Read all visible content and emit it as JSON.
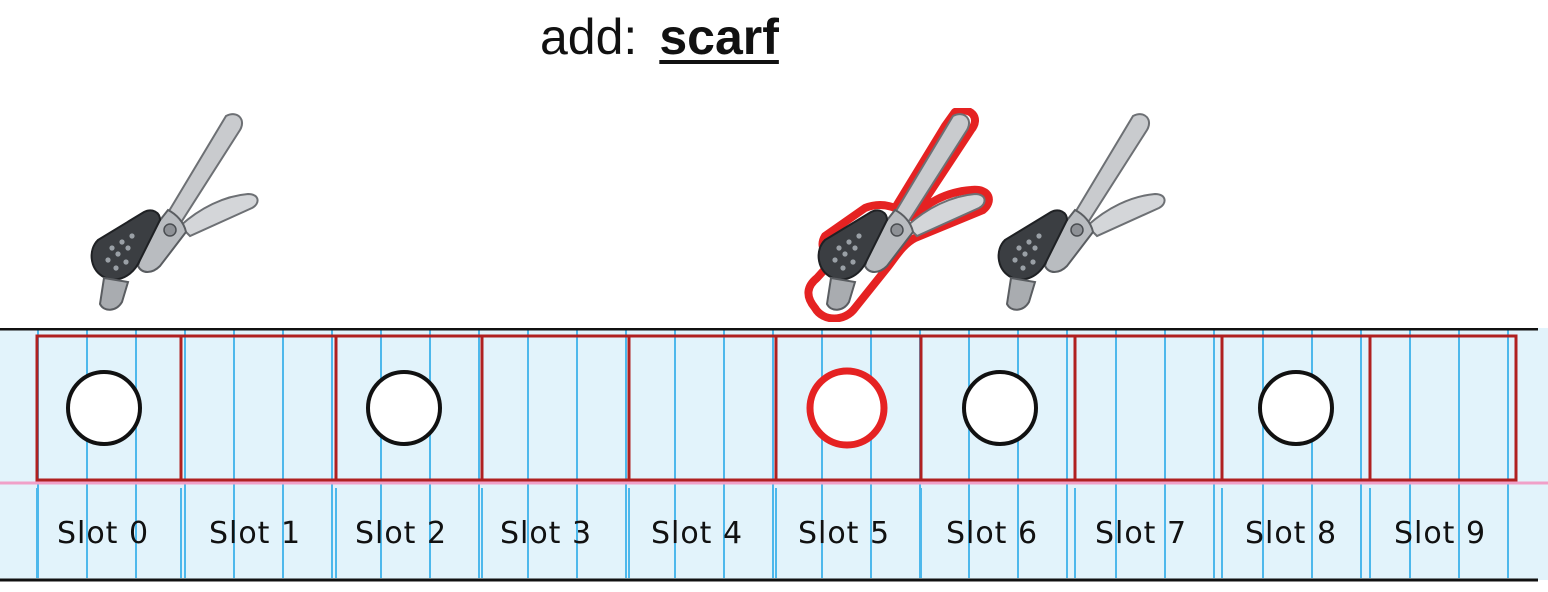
{
  "header": {
    "label": "add:",
    "word": "scarf"
  },
  "colors": {
    "paper": "#e2f3fb",
    "rule_blue": "#4db8ec",
    "margin_pink": "#f0a0c8",
    "box_red": "#b02020",
    "highlight_red": "#e52222",
    "ink": "#111111"
  },
  "slots": [
    {
      "label": "Slot 0",
      "hole": true,
      "highlight": false
    },
    {
      "label": "Slot 1",
      "hole": false,
      "highlight": false
    },
    {
      "label": "Slot 2",
      "hole": true,
      "highlight": false
    },
    {
      "label": "Slot 3",
      "hole": false,
      "highlight": false
    },
    {
      "label": "Slot 4",
      "hole": false,
      "highlight": false
    },
    {
      "label": "Slot 5",
      "hole": true,
      "highlight": true
    },
    {
      "label": "Slot 6",
      "hole": true,
      "highlight": false
    },
    {
      "label": "Slot 7",
      "hole": false,
      "highlight": false
    },
    {
      "label": "Slot 8",
      "hole": true,
      "highlight": false
    },
    {
      "label": "Slot 9",
      "hole": false,
      "highlight": false
    }
  ],
  "punches": [
    {
      "name": "hole-punch-icon",
      "slot": 0,
      "highlight": false
    },
    {
      "name": "hole-punch-icon",
      "slot": 5,
      "highlight": true
    },
    {
      "name": "hole-punch-icon",
      "slot": 6,
      "highlight": false
    }
  ]
}
